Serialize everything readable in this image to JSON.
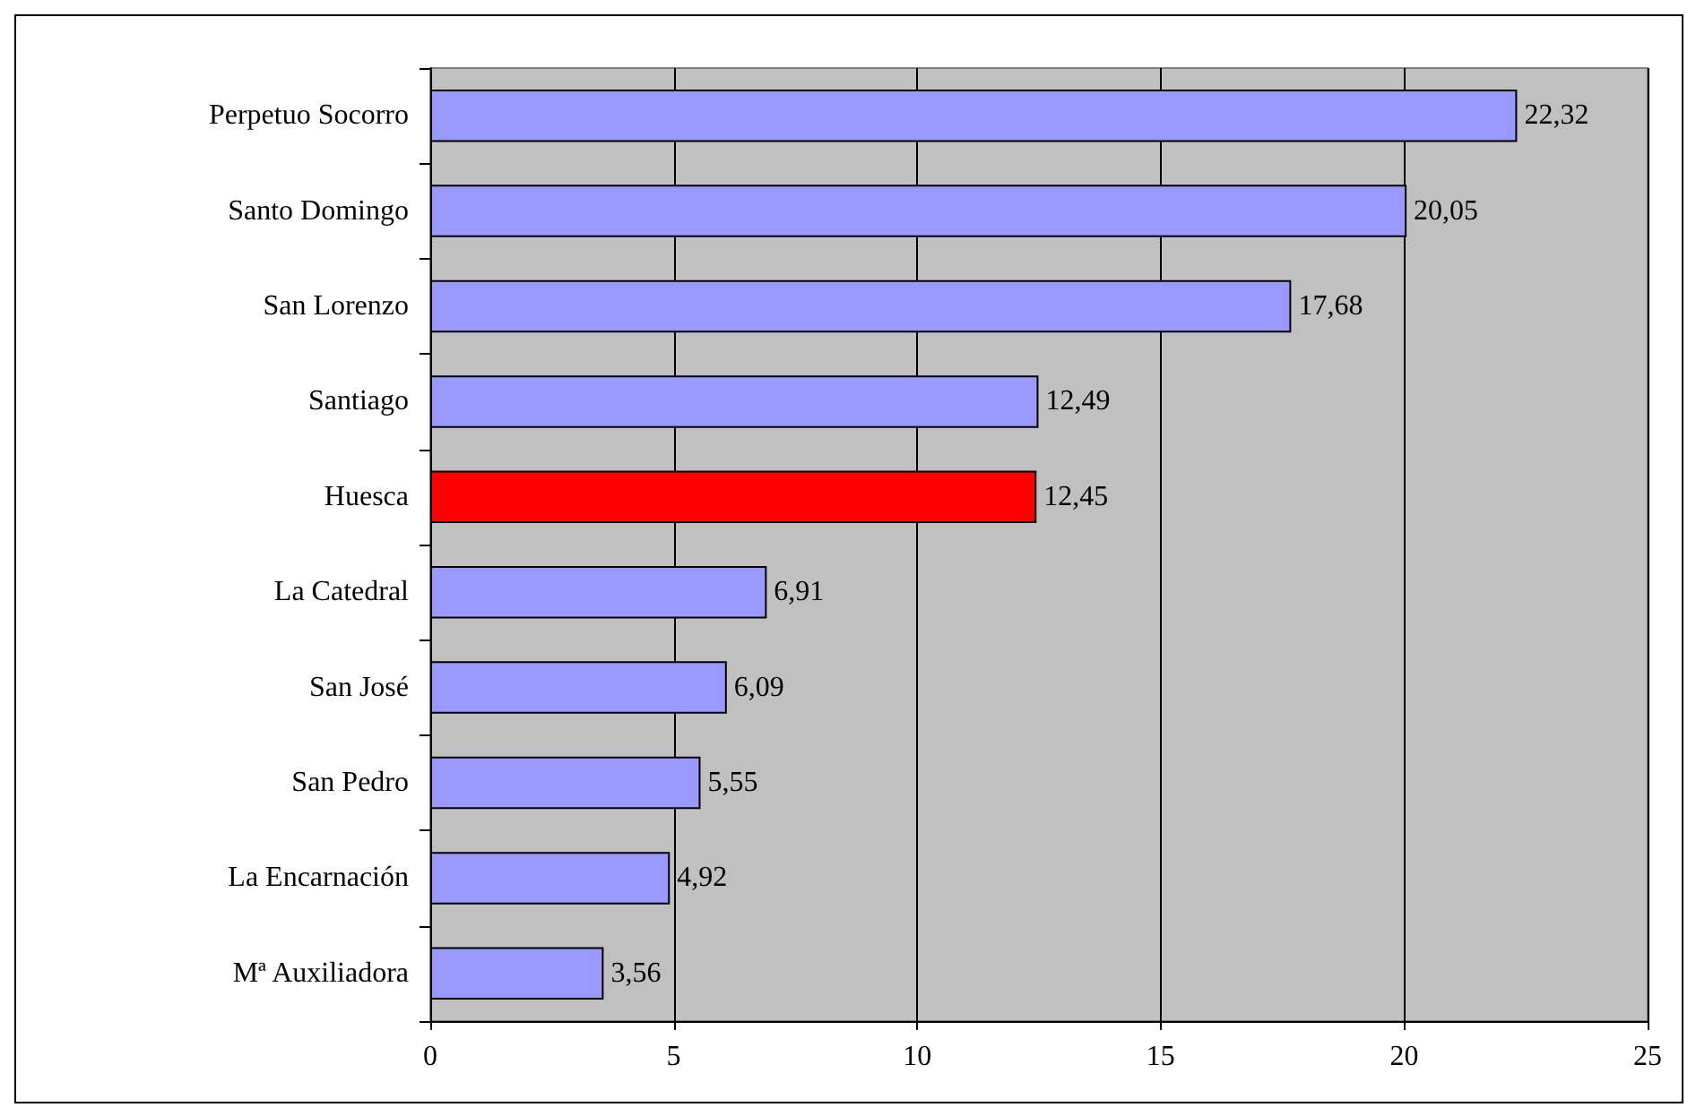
{
  "chart_data": {
    "type": "bar",
    "orientation": "horizontal",
    "categories": [
      "Perpetuo Socorro",
      "Santo Domingo",
      "San Lorenzo",
      "Santiago",
      "Huesca",
      "La Catedral",
      "San José",
      "San Pedro",
      "La Encarnación",
      "Mª Auxiliadora"
    ],
    "values": [
      22.32,
      20.05,
      17.68,
      12.49,
      12.45,
      6.91,
      6.09,
      5.55,
      4.92,
      3.56
    ],
    "colors": [
      "#9999ff",
      "#9999ff",
      "#9999ff",
      "#9999ff",
      "#ff0000",
      "#9999ff",
      "#9999ff",
      "#9999ff",
      "#9999ff",
      "#9999ff"
    ],
    "value_labels": [
      "22,32",
      "20,05",
      "17,68",
      "12,49",
      "12,45",
      "6,91",
      "6,09",
      "5,55",
      "4,92",
      "3,56"
    ],
    "xlim": [
      0,
      25
    ],
    "xticks": [
      0,
      5,
      10,
      15,
      20,
      25
    ],
    "grid": "x"
  }
}
